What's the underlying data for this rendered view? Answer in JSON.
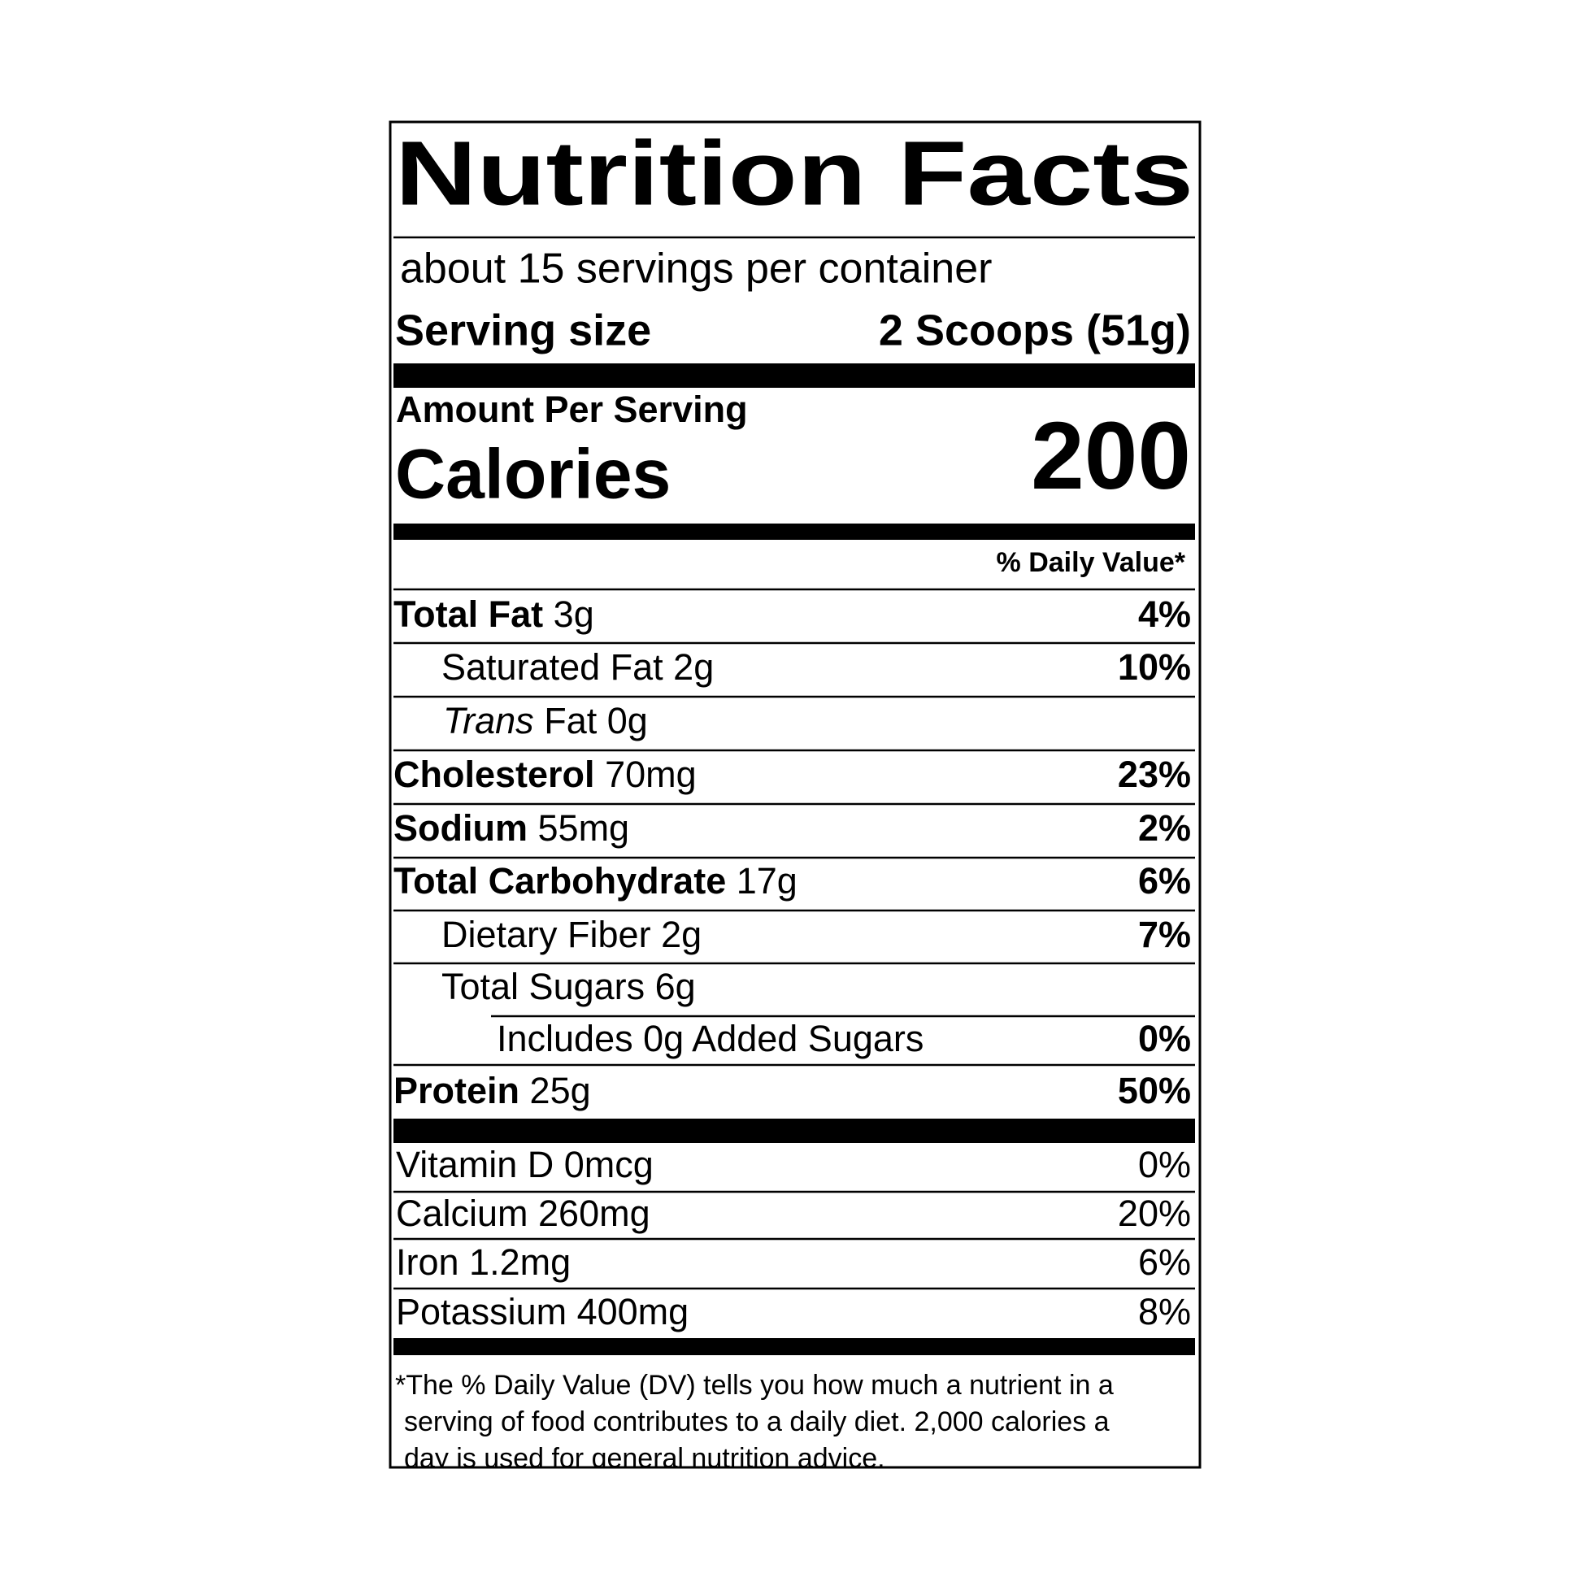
{
  "header": {
    "title": "Nutrition Facts",
    "servings": "about 15 servings per container",
    "serving_size_label": "Serving size",
    "serving_size_value": "2 Scoops (51g)"
  },
  "calories": {
    "amount_per_serving": "Amount Per Serving",
    "label": "Calories",
    "value": 200
  },
  "daily_value_header": "% Daily Value*",
  "nutrients": [
    {
      "name": "Total Fat",
      "amount": "3g",
      "dv": "4%"
    },
    {
      "name": "Saturated Fat 2g",
      "dv": "10%"
    },
    {
      "name": "Trans",
      "rest": "Fat 0g"
    },
    {
      "name": "Cholesterol",
      "amount": "70mg",
      "dv": "23%"
    },
    {
      "name": "Sodium",
      "amount": "55mg",
      "dv": "2%"
    },
    {
      "name": "Total Carbohydrate",
      "amount": "17g",
      "dv": "6%"
    },
    {
      "name": "Dietary Fiber 2g",
      "dv": "7%"
    },
    {
      "name": "Total Sugars 6g"
    },
    {
      "name": "Includes 0g Added Sugars",
      "dv": "0%"
    },
    {
      "name": "Protein",
      "amount": "25g",
      "dv": "50%"
    }
  ],
  "vitamins": [
    {
      "name": "Vitamin D 0mcg",
      "dv": "0%"
    },
    {
      "name": "Calcium 260mg",
      "dv": "20%"
    },
    {
      "name": "Iron 1.2mg",
      "dv": "6%"
    },
    {
      "name": "Potassium 400mg",
      "dv": "8%"
    }
  ],
  "footnote": [
    "*The % Daily Value (DV) tells you how much a nutrient in a",
    "serving of food contributes to a daily diet. 2,000 calories a",
    "day is used for general nutrition advice."
  ]
}
